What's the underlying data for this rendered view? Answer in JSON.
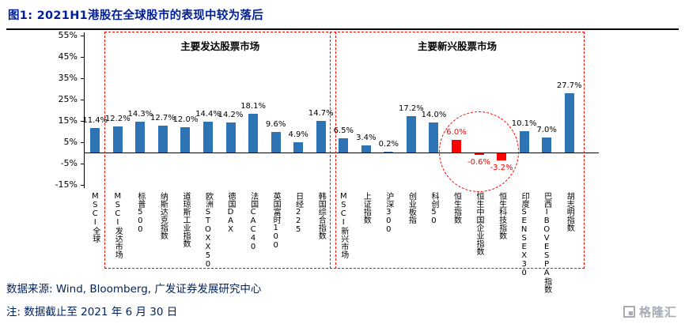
{
  "header": {
    "title": "图1: 2021H1港股在全球股市的表现中较为落后",
    "title_color": "#001F97"
  },
  "chart_data": {
    "type": "bar",
    "title": "2021H1港股在全球股市的表现中较为落后",
    "categories": [
      "MSCI全球",
      "MSCI发达市场",
      "标普500",
      "纳斯达克指数",
      "道琼斯工业指数",
      "欧洲STOXX50",
      "德国DAX",
      "法国CAC40",
      "英国富时100",
      "日经225",
      "韩国综合指数",
      "MSCI新兴市场",
      "上证指数",
      "沪深300",
      "创业板指",
      "科创50",
      "恒生指数",
      "恒生中国企业指数",
      "恒生科技指数",
      "印度SENSEX30",
      "巴西IBOVESPA指数",
      "胡志明指数"
    ],
    "values": [
      11.4,
      12.2,
      14.3,
      12.7,
      12.0,
      14.4,
      14.2,
      18.1,
      9.6,
      4.9,
      14.7,
      6.5,
      3.4,
      0.2,
      17.2,
      14.0,
      6.0,
      -0.6,
      -3.2,
      10.1,
      7.0,
      27.7
    ],
    "value_labels": [
      "11.4%",
      "12.2%",
      "14.3%",
      "12.7%",
      "12.0%",
      "14.4%",
      "14.2%",
      "18.1%",
      "9.6%",
      "4.9%",
      "14.7%",
      "6.5%",
      "3.4%",
      "0.2%",
      "17.2%",
      "14.0%",
      "6.0%",
      "-0.6%",
      "-3.2%",
      "10.1%",
      "7.0%",
      "27.7%"
    ],
    "highlight_indices": [
      16,
      17,
      18
    ],
    "y_ticks": [
      55,
      45,
      35,
      25,
      15,
      5,
      -5,
      -15
    ],
    "y_tick_labels": [
      "55%",
      "45%",
      "35%",
      "25%",
      "15%",
      "5%",
      "-5%",
      "-15%"
    ],
    "ylim": [
      -15,
      55
    ],
    "grid": false,
    "xlabel": "",
    "ylabel": "",
    "groups": [
      {
        "label": "主要发达股票市场",
        "start": 1,
        "end": 10
      },
      {
        "label": "主要新兴股票市场",
        "start": 11,
        "end": 21
      }
    ],
    "colors": {
      "bar": "#2E74B5",
      "highlight": "#FF0000",
      "annotation": "#FF0000"
    }
  },
  "footer": {
    "source": "数据来源: Wind, Bloomberg, 广发证券发展研究中心",
    "note": "注: 数据截止至 2021 年 6 月 30 日",
    "logo_text": "格隆汇",
    "text_color": "#00215E",
    "logo_color": "#A6ACB5"
  }
}
